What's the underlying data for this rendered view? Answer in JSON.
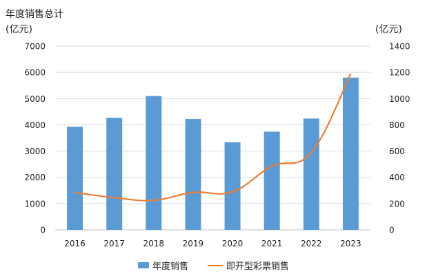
{
  "chart_data": {
    "type": "bar",
    "title": "年度销售总计",
    "categories": [
      "2016",
      "2017",
      "2018",
      "2019",
      "2020",
      "2021",
      "2022",
      "2023"
    ],
    "series": [
      {
        "name": "年度销售",
        "type": "bar",
        "axis": "left",
        "values": [
          3930,
          4270,
          5100,
          4220,
          3340,
          3740,
          4240,
          5800
        ]
      },
      {
        "name": "即开型彩票销售",
        "type": "line",
        "axis": "right",
        "values": [
          285,
          245,
          225,
          285,
          290,
          485,
          590,
          1190
        ]
      }
    ],
    "ylabel": "(亿元)",
    "ylabel_right": "(亿元)",
    "ylim": [
      0,
      7000
    ],
    "ylim_right": [
      0,
      1400
    ],
    "yticks": [
      "0",
      "1000",
      "2000",
      "3000",
      "4000",
      "5000",
      "6000",
      "7000"
    ],
    "yticks_right": [
      "0",
      "200",
      "400",
      "600",
      "800",
      "1000",
      "1200",
      "1400"
    ],
    "grid": true,
    "legend_position": "bottom",
    "colors": {
      "bar": "#5B9BD5",
      "line": "#ED7D31",
      "grid": "#d9d9d9"
    }
  }
}
